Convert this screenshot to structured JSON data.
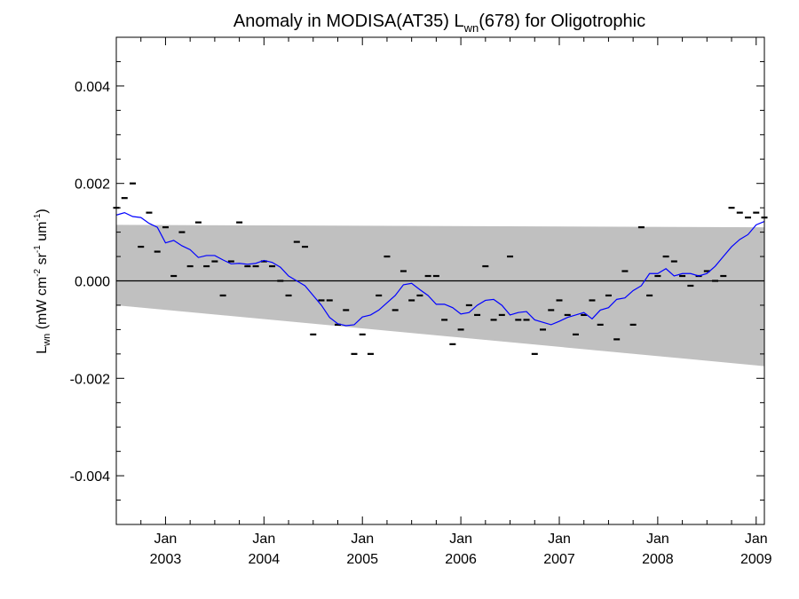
{
  "chart_data": {
    "type": "line",
    "title": "Anomaly in MODISA(AT35) L_wn(678) for Oligotrophic",
    "title_parts": {
      "pre": "Anomaly in MODISA(AT35) L",
      "sub": "wn",
      "post": "(678) for Oligotrophic"
    },
    "ylabel": "L_wn (mW cm^-2 sr^-1 um^-1)",
    "ylabel_parts": {
      "l": "L",
      "wn": "wn",
      "a": " (mW cm",
      "m2": "-2",
      "b": " sr",
      "m1a": "-1",
      "c": " um",
      "m1b": "-1",
      "d": ")"
    },
    "xlim": [
      "2002-07",
      "2009-02"
    ],
    "ylim": [
      -0.005,
      0.005
    ],
    "y_ticks": [
      -0.004,
      -0.002,
      0.0,
      0.002,
      0.004
    ],
    "y_tick_labels": [
      "-0.004",
      "-0.002",
      "0.000",
      "0.002",
      "0.004"
    ],
    "x_tick_labels": [
      {
        "date": "2003-01",
        "month": "Jan",
        "year": "2003"
      },
      {
        "date": "2004-01",
        "month": "Jan",
        "year": "2004"
      },
      {
        "date": "2005-01",
        "month": "Jan",
        "year": "2005"
      },
      {
        "date": "2006-01",
        "month": "Jan",
        "year": "2006"
      },
      {
        "date": "2007-01",
        "month": "Jan",
        "year": "2007"
      },
      {
        "date": "2008-01",
        "month": "Jan",
        "year": "2008"
      },
      {
        "date": "2009-01",
        "month": "Jan",
        "year": "2009"
      }
    ],
    "band": {
      "x": [
        "2002-07",
        "2009-02"
      ],
      "upper": [
        0.00115,
        0.0011
      ],
      "lower": [
        -0.0005,
        -0.00175
      ],
      "color": "#c0c0c0"
    },
    "zero_line": 0.0,
    "line_color": "#0000ff",
    "marker_color": "#000000",
    "monthly_anomaly": {
      "x": [
        "2002-07",
        "2002-08",
        "2002-09",
        "2002-10",
        "2002-11",
        "2002-12",
        "2003-01",
        "2003-02",
        "2003-03",
        "2003-04",
        "2003-05",
        "2003-06",
        "2003-07",
        "2003-08",
        "2003-09",
        "2003-10",
        "2003-11",
        "2003-12",
        "2004-01",
        "2004-02",
        "2004-03",
        "2004-04",
        "2004-05",
        "2004-06",
        "2004-07",
        "2004-08",
        "2004-09",
        "2004-10",
        "2004-11",
        "2004-12",
        "2005-01",
        "2005-02",
        "2005-03",
        "2005-04",
        "2005-05",
        "2005-06",
        "2005-07",
        "2005-08",
        "2005-09",
        "2005-10",
        "2005-11",
        "2005-12",
        "2006-01",
        "2006-02",
        "2006-03",
        "2006-04",
        "2006-05",
        "2006-06",
        "2006-07",
        "2006-08",
        "2006-09",
        "2006-10",
        "2006-11",
        "2006-12",
        "2007-01",
        "2007-02",
        "2007-03",
        "2007-04",
        "2007-05",
        "2007-06",
        "2007-07",
        "2007-08",
        "2007-09",
        "2007-10",
        "2007-11",
        "2007-12",
        "2008-01",
        "2008-02",
        "2008-03",
        "2008-04",
        "2008-05",
        "2008-06",
        "2008-07",
        "2008-08",
        "2008-09",
        "2008-10",
        "2008-11",
        "2008-12",
        "2009-01",
        "2009-02"
      ],
      "y": [
        0.0015,
        0.0017,
        0.002,
        0.0007,
        0.0014,
        0.0006,
        0.0011,
        0.0001,
        0.001,
        0.0003,
        0.0012,
        0.0003,
        0.0004,
        -0.0003,
        0.0004,
        0.0012,
        0.0003,
        0.0003,
        0.0004,
        0.0003,
        0.0,
        -0.0003,
        0.0008,
        0.0007,
        -0.0011,
        -0.0004,
        -0.0004,
        -0.0009,
        -0.0006,
        -0.0015,
        -0.0011,
        -0.0015,
        -0.0003,
        0.0005,
        -0.0006,
        0.0002,
        -0.0004,
        -0.0003,
        0.0001,
        0.0001,
        -0.0008,
        -0.0013,
        -0.001,
        -0.0005,
        -0.0007,
        0.0003,
        -0.0008,
        -0.0007,
        0.0005,
        -0.0008,
        -0.0008,
        -0.0015,
        -0.001,
        -0.0006,
        -0.0004,
        -0.0007,
        -0.0011,
        -0.0007,
        -0.0004,
        -0.0009,
        -0.0003,
        -0.0012,
        0.0002,
        -0.0009,
        0.0011,
        -0.0003,
        0.0001,
        0.0005,
        0.0004,
        0.0001,
        -0.0001,
        0.0001,
        0.0002,
        0.0,
        0.0001,
        0.0015,
        0.0014,
        0.0013,
        0.0014,
        0.0013
      ]
    },
    "running_mean": {
      "x": [
        "2002-07",
        "2002-08",
        "2002-09",
        "2002-10",
        "2002-11",
        "2002-12",
        "2003-01",
        "2003-02",
        "2003-03",
        "2003-04",
        "2003-05",
        "2003-06",
        "2003-07",
        "2003-08",
        "2003-09",
        "2003-10",
        "2003-11",
        "2003-12",
        "2004-01",
        "2004-02",
        "2004-03",
        "2004-04",
        "2004-05",
        "2004-06",
        "2004-07",
        "2004-08",
        "2004-09",
        "2004-10",
        "2004-11",
        "2004-12",
        "2005-01",
        "2005-02",
        "2005-03",
        "2005-04",
        "2005-05",
        "2005-06",
        "2005-07",
        "2005-08",
        "2005-09",
        "2005-10",
        "2005-11",
        "2005-12",
        "2006-01",
        "2006-02",
        "2006-03",
        "2006-04",
        "2006-05",
        "2006-06",
        "2006-07",
        "2006-08",
        "2006-09",
        "2006-10",
        "2006-11",
        "2006-12",
        "2007-01",
        "2007-02",
        "2007-03",
        "2007-04",
        "2007-05",
        "2007-06",
        "2007-07",
        "2007-08",
        "2007-09",
        "2007-10",
        "2007-11",
        "2007-12",
        "2008-01",
        "2008-02",
        "2008-03",
        "2008-04",
        "2008-05",
        "2008-06",
        "2008-07",
        "2008-08",
        "2008-09",
        "2008-10",
        "2008-11",
        "2008-12",
        "2009-01",
        "2009-02"
      ],
      "y": [
        0.00135,
        0.0014,
        0.00132,
        0.0013,
        0.00118,
        0.0011,
        0.00078,
        0.00083,
        0.00072,
        0.00064,
        0.00048,
        0.00052,
        0.00052,
        0.00043,
        0.00035,
        0.00036,
        0.00034,
        0.00036,
        0.00042,
        0.00038,
        0.00028,
        0.0001,
        0.0,
        -0.0001,
        -0.0003,
        -0.0005,
        -0.00075,
        -0.00088,
        -0.00092,
        -0.0009,
        -0.00074,
        -0.0007,
        -0.0006,
        -0.00045,
        -0.0003,
        -8e-05,
        -5e-05,
        -0.00018,
        -0.0003,
        -0.00048,
        -0.00048,
        -0.00055,
        -0.00068,
        -0.00065,
        -0.0005,
        -0.0004,
        -0.00038,
        -0.0005,
        -0.0007,
        -0.00065,
        -0.00063,
        -0.0008,
        -0.00085,
        -0.0009,
        -0.00083,
        -0.00075,
        -0.0007,
        -0.00065,
        -0.00078,
        -0.0006,
        -0.00055,
        -0.00038,
        -0.00035,
        -0.0002,
        -0.0001,
        0.00015,
        0.00015,
        0.00025,
        0.0001,
        0.00015,
        0.00015,
        0.0001,
        0.00015,
        0.0003,
        0.0005,
        0.0007,
        0.00085,
        0.00095,
        0.00115,
        0.00122
      ]
    }
  }
}
